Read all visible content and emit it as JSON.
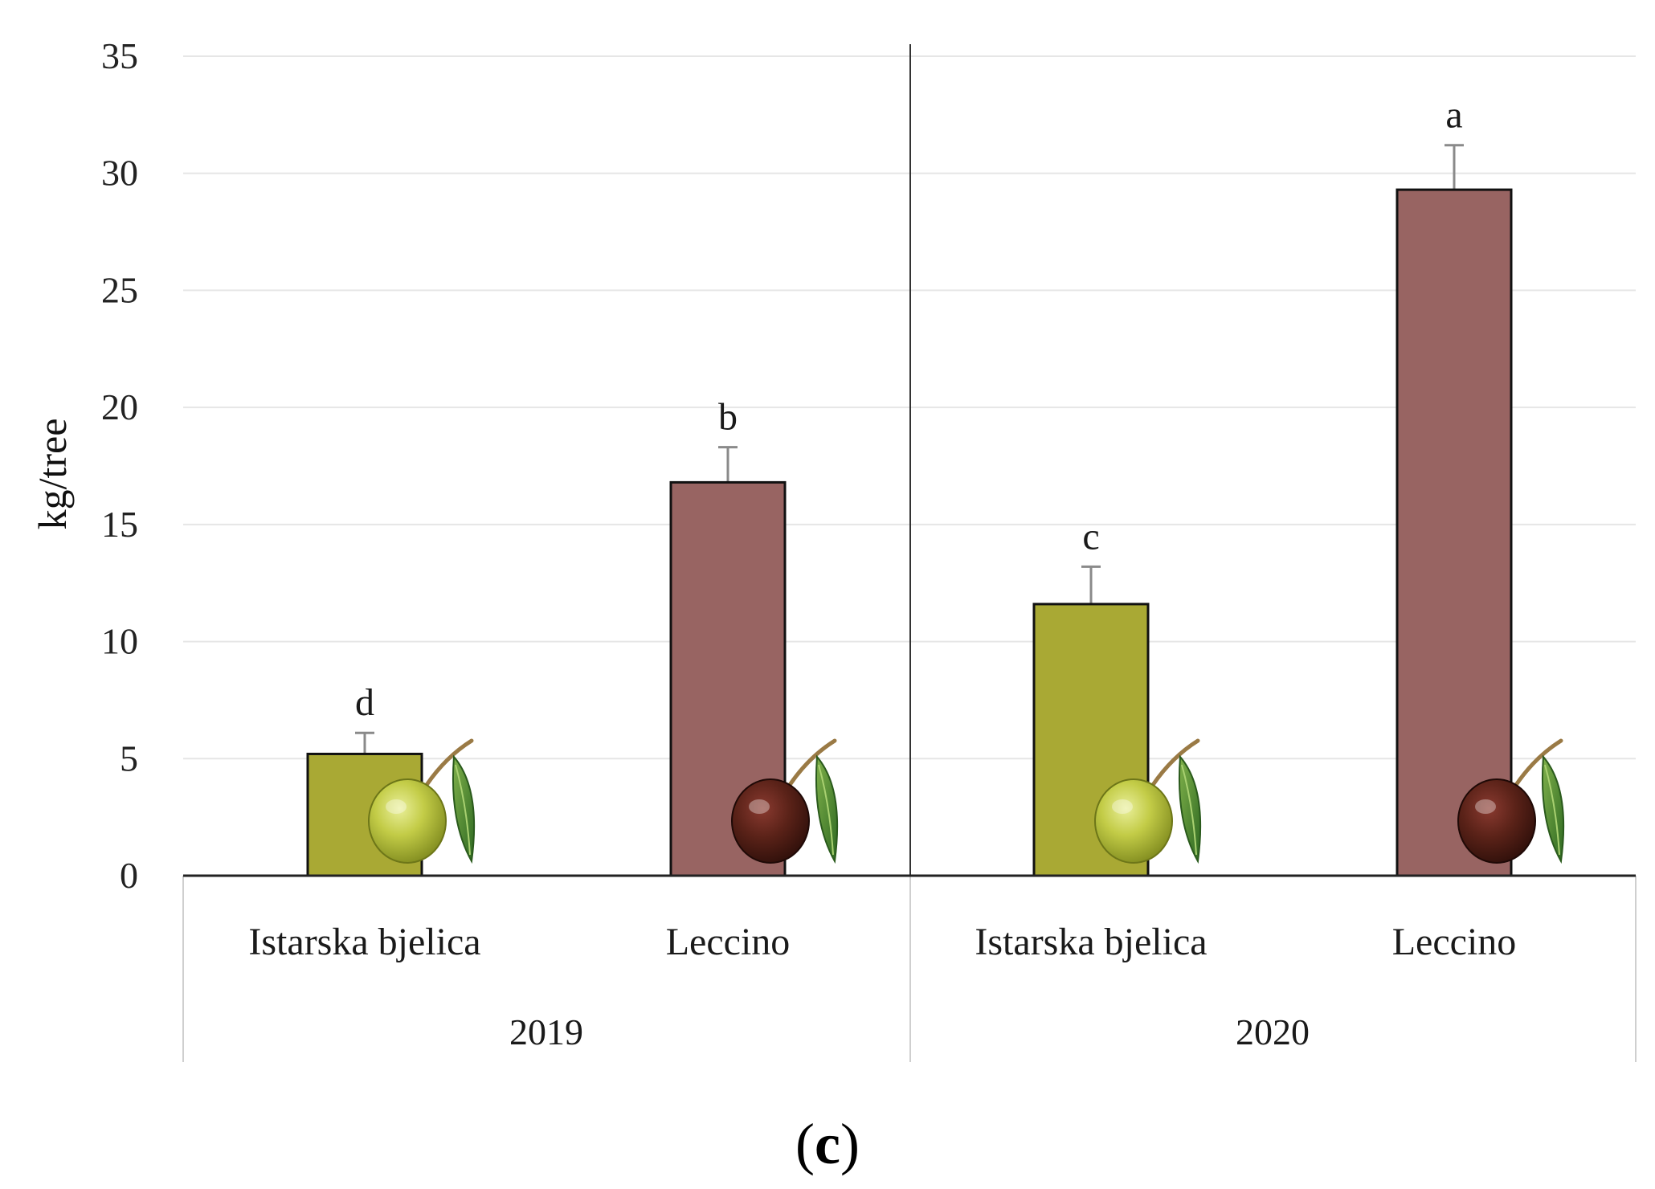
{
  "chart_data": {
    "type": "bar",
    "ylabel": "kg/tree",
    "xlabel": "",
    "ylim": [
      0,
      35
    ],
    "yticks": [
      0,
      5,
      10,
      15,
      20,
      25,
      30,
      35
    ],
    "grid": true,
    "groups": [
      {
        "name": "2019",
        "bars": [
          {
            "category": "Istarska bjelica",
            "value": 5.2,
            "error": 0.9,
            "letter": "d",
            "color": "#a9a934",
            "olive": "green"
          },
          {
            "category": "Leccino",
            "value": 16.8,
            "error": 1.5,
            "letter": "b",
            "color": "#986462",
            "olive": "dark"
          }
        ]
      },
      {
        "name": "2020",
        "bars": [
          {
            "category": "Istarska bjelica",
            "value": 11.6,
            "error": 1.6,
            "letter": "c",
            "color": "#a9a934",
            "olive": "green"
          },
          {
            "category": "Leccino",
            "value": 29.3,
            "error": 1.9,
            "letter": "a",
            "color": "#986462",
            "olive": "dark"
          }
        ]
      }
    ]
  },
  "panel_label": {
    "open": "(",
    "letter": "c",
    "close": ")"
  }
}
